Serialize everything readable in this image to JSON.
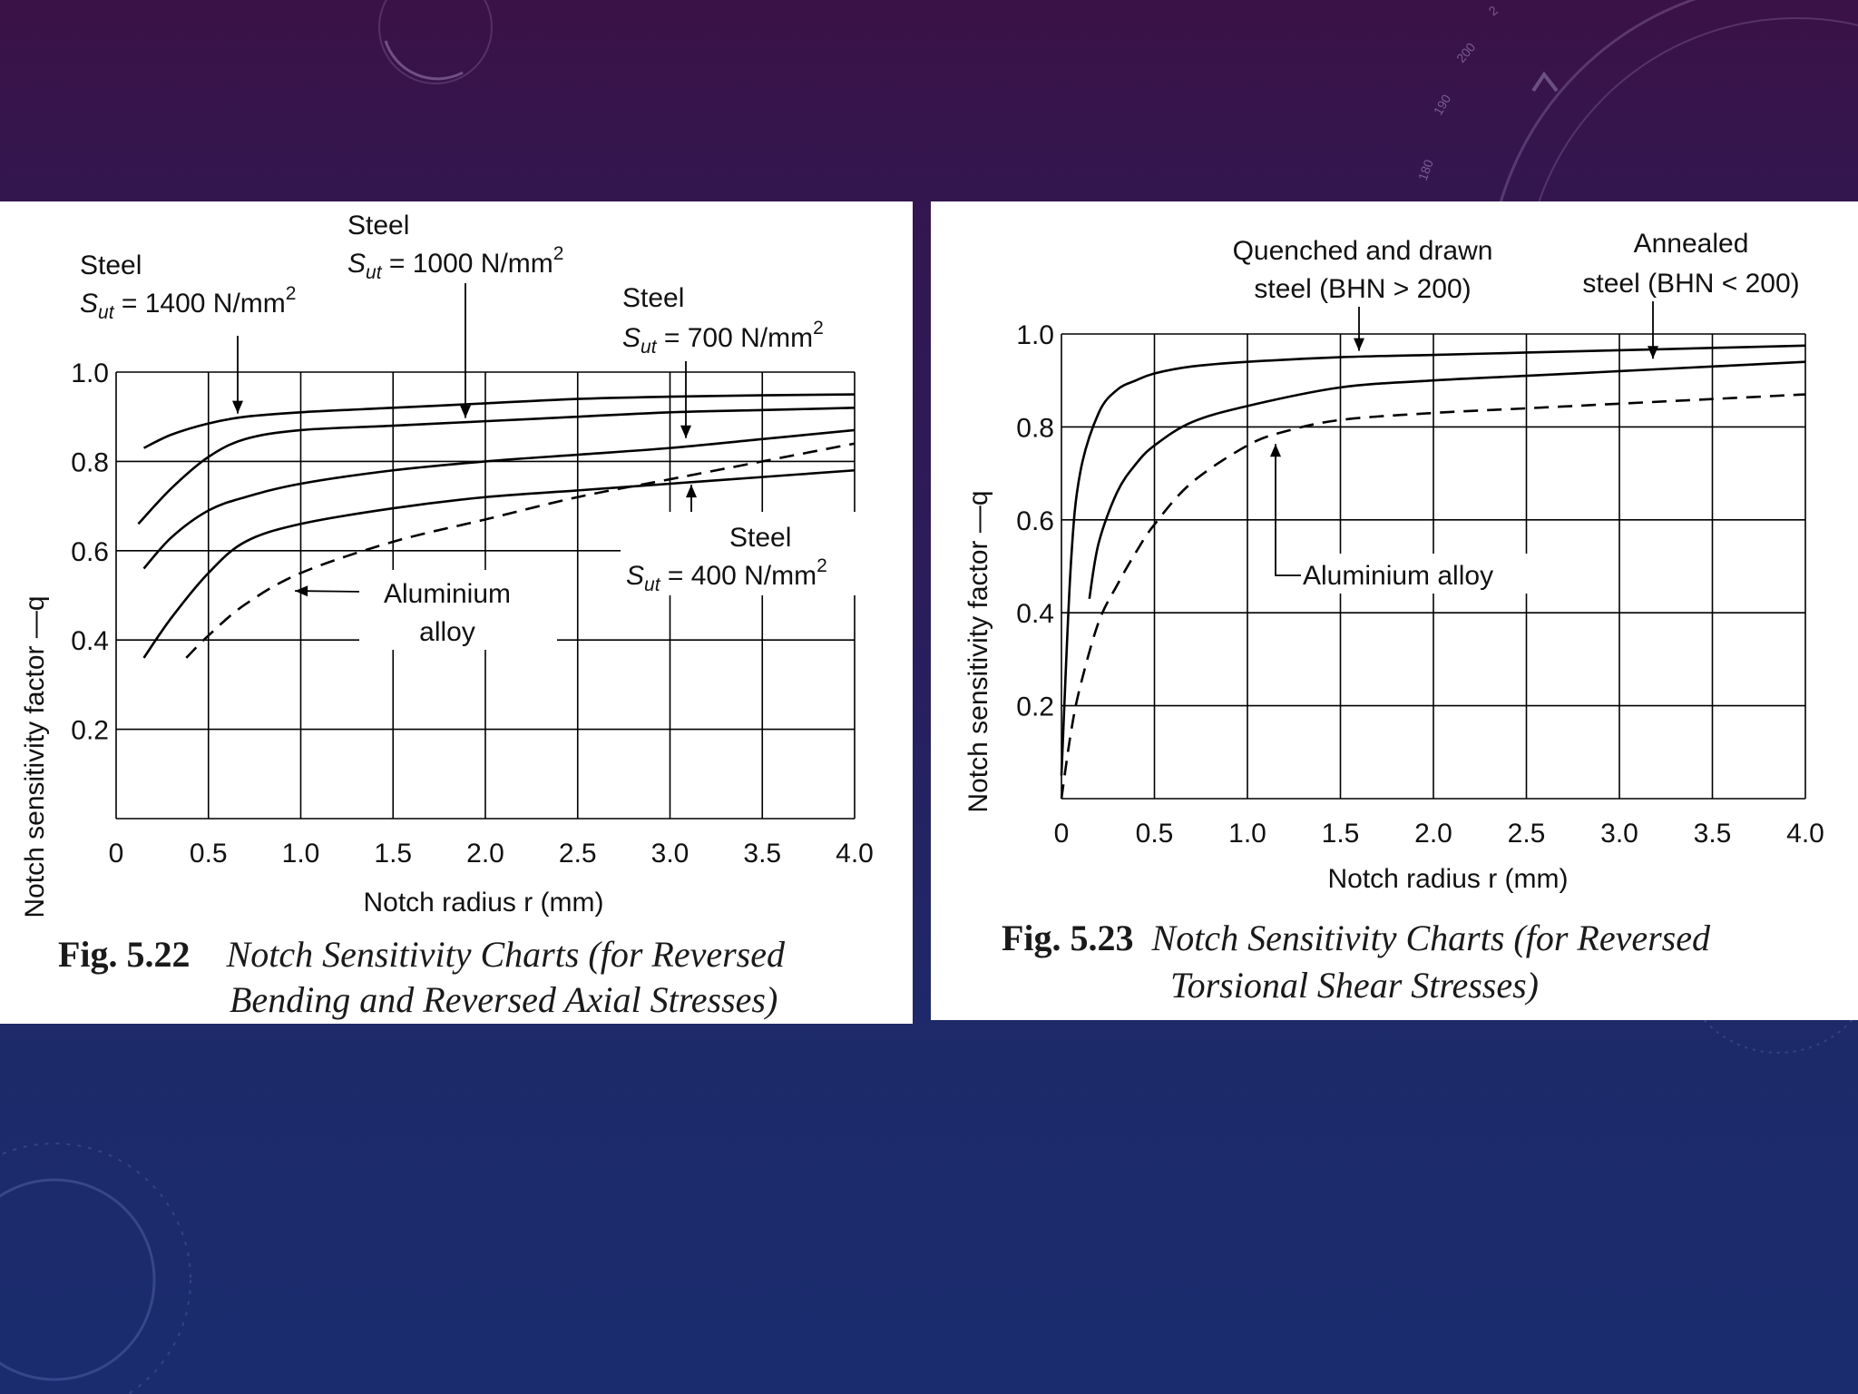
{
  "slide": {
    "background_colors": [
      "#3a1247",
      "#2a1d5c",
      "#1a2c6e"
    ],
    "decoration_dial_ticks": [
      "180",
      "190",
      "200",
      "2"
    ]
  },
  "chart_data": [
    {
      "type": "line",
      "xlabel": "Notch radius r (mm)",
      "ylabel": "Notch sensitivity factor —q",
      "xlim": [
        0,
        4.0
      ],
      "ylim": [
        0,
        1.0
      ],
      "xticks": [
        "0",
        "0.5",
        "1.0",
        "1.5",
        "2.0",
        "2.5",
        "3.0",
        "3.5",
        "4.0"
      ],
      "yticks": [
        "0.2",
        "0.4",
        "0.6",
        "0.8",
        "1.0"
      ],
      "grid": true,
      "series": [
        {
          "name": "Steel Sut = 1400 N/mm2",
          "style": "solid",
          "x": [
            0.15,
            0.3,
            0.5,
            0.7,
            1.0,
            1.5,
            2.0,
            2.5,
            3.0,
            3.5,
            4.0
          ],
          "y": [
            0.83,
            0.86,
            0.885,
            0.9,
            0.91,
            0.92,
            0.93,
            0.94,
            0.945,
            0.948,
            0.95
          ]
        },
        {
          "name": "Steel Sut = 1000 N/mm2",
          "style": "solid",
          "x": [
            0.12,
            0.3,
            0.5,
            0.7,
            1.0,
            1.5,
            2.0,
            2.5,
            3.0,
            3.5,
            4.0
          ],
          "y": [
            0.66,
            0.74,
            0.81,
            0.85,
            0.87,
            0.88,
            0.89,
            0.9,
            0.91,
            0.915,
            0.92
          ]
        },
        {
          "name": "Steel Sut = 700 N/mm2",
          "style": "solid",
          "x": [
            0.15,
            0.3,
            0.5,
            0.7,
            1.0,
            1.5,
            2.0,
            2.5,
            3.0,
            3.5,
            4.0
          ],
          "y": [
            0.56,
            0.63,
            0.69,
            0.72,
            0.75,
            0.78,
            0.8,
            0.815,
            0.83,
            0.85,
            0.87
          ]
        },
        {
          "name": "Steel Sut = 400 N/mm2",
          "style": "solid",
          "x": [
            0.15,
            0.3,
            0.5,
            0.7,
            1.0,
            1.5,
            2.0,
            2.5,
            3.0,
            3.5,
            4.0
          ],
          "y": [
            0.36,
            0.45,
            0.55,
            0.62,
            0.66,
            0.695,
            0.72,
            0.735,
            0.75,
            0.765,
            0.78
          ]
        },
        {
          "name": "Aluminium alloy",
          "style": "dashed",
          "x": [
            0.38,
            0.5,
            0.7,
            1.0,
            1.5,
            2.0,
            2.5,
            3.0,
            3.5,
            4.0
          ],
          "y": [
            0.36,
            0.41,
            0.48,
            0.55,
            0.62,
            0.67,
            0.72,
            0.76,
            0.8,
            0.84
          ]
        }
      ],
      "annotations": [
        {
          "line1": "Steel",
          "line2_sym": "S",
          "line2_sub": "ut",
          "line2_rest": " = 1400 N/mm",
          "sup": "2"
        },
        {
          "line1": "Steel",
          "line2_sym": "S",
          "line2_sub": "ut",
          "line2_rest": " = 1000 N/mm",
          "sup": "2"
        },
        {
          "line1": "Steel",
          "line2_sym": "S",
          "line2_sub": "ut",
          "line2_rest": " = 700 N/mm",
          "sup": "2"
        },
        {
          "line1": "Steel",
          "line2_sym": "S",
          "line2_sub": "ut",
          "line2_rest": " = 400 N/mm",
          "sup": "2"
        },
        {
          "line1": "Aluminium",
          "line2": "alloy"
        }
      ],
      "caption": {
        "number": "Fig. 5.22",
        "line1": "Notch Sensitivity Charts   (for Reversed",
        "line2": "Bending and   Reversed Axial Stresses)"
      }
    },
    {
      "type": "line",
      "xlabel": "Notch radius r (mm)",
      "ylabel": "Notch sensitivity factor —q",
      "xlim": [
        0,
        4.0
      ],
      "ylim": [
        0,
        1.0
      ],
      "xticks": [
        "0",
        "0.5",
        "1.0",
        "1.5",
        "2.0",
        "2.5",
        "3.0",
        "3.5",
        "4.0"
      ],
      "yticks": [
        "0.2",
        "0.4",
        "0.6",
        "0.8",
        "1.0"
      ],
      "grid": true,
      "series": [
        {
          "name": "Quenched and drawn steel (BHN > 200)",
          "style": "solid",
          "x": [
            0.0,
            0.05,
            0.1,
            0.2,
            0.3,
            0.4,
            0.5,
            0.7,
            1.0,
            1.5,
            2.0,
            2.5,
            3.0,
            3.5,
            4.0
          ],
          "y": [
            0.05,
            0.5,
            0.7,
            0.83,
            0.88,
            0.9,
            0.915,
            0.93,
            0.94,
            0.95,
            0.955,
            0.96,
            0.965,
            0.97,
            0.975
          ]
        },
        {
          "name": "Annealed steel (BHN < 200)",
          "style": "solid",
          "x": [
            0.15,
            0.2,
            0.3,
            0.4,
            0.5,
            0.7,
            1.0,
            1.5,
            2.0,
            2.5,
            3.0,
            3.5,
            4.0
          ],
          "y": [
            0.43,
            0.55,
            0.66,
            0.72,
            0.76,
            0.81,
            0.845,
            0.885,
            0.9,
            0.91,
            0.92,
            0.93,
            0.94
          ]
        },
        {
          "name": "Aluminium alloy",
          "style": "dashed",
          "x": [
            0.0,
            0.05,
            0.1,
            0.2,
            0.3,
            0.4,
            0.5,
            0.7,
            1.0,
            1.2,
            1.5,
            2.0,
            2.5,
            3.0,
            3.5,
            4.0
          ],
          "y": [
            0.0,
            0.14,
            0.24,
            0.38,
            0.46,
            0.53,
            0.59,
            0.68,
            0.76,
            0.79,
            0.815,
            0.83,
            0.84,
            0.85,
            0.86,
            0.87
          ]
        }
      ],
      "annotations": [
        {
          "line1": "Quenched and drawn",
          "line2": "steel (BHN > 200)"
        },
        {
          "line1": "Annealed",
          "line2": "steel (BHN < 200)"
        },
        {
          "line1": "Aluminium alloy"
        }
      ],
      "caption": {
        "number": "Fig. 5.23",
        "line1": "Notch Sensitivity Charts (for Reversed",
        "line2": "Torsional Shear Stresses)"
      }
    }
  ]
}
